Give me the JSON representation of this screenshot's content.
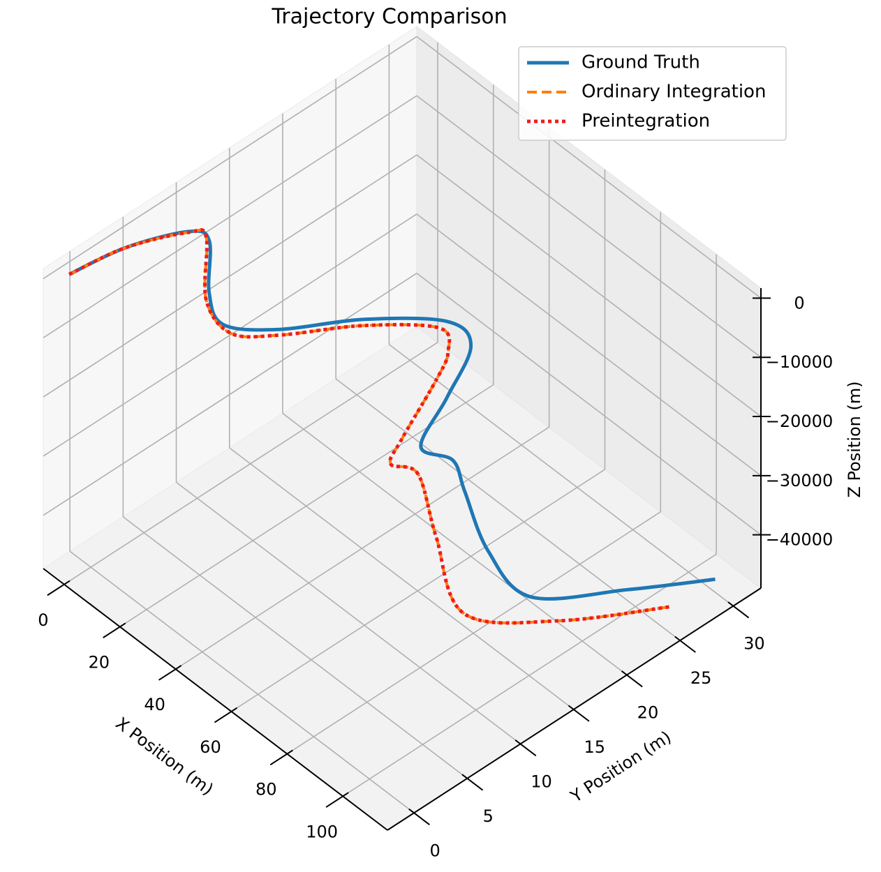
{
  "chart_data": {
    "type": "line3d",
    "title": "Trajectory Comparison",
    "xlabel": "X Position (m)",
    "ylabel": "Y Position (m)",
    "zlabel": "Z Position (m)",
    "xlim": [
      -7.5,
      116
    ],
    "ylim": [
      -2.5,
      32.6
    ],
    "zlim": [
      -49000,
      1700
    ],
    "xticks": [
      0,
      20,
      40,
      60,
      80,
      100
    ],
    "yticks": [
      0,
      5,
      10,
      15,
      20,
      25,
      30
    ],
    "zticks": [
      {
        "value": -40000,
        "label": "−40000"
      },
      {
        "value": -30000,
        "label": "−30000"
      },
      {
        "value": -20000,
        "label": "−20000"
      },
      {
        "value": -10000,
        "label": "−10000"
      },
      0
    ],
    "grid": true,
    "legend": "upper right",
    "series": [
      {
        "name": "Ground Truth",
        "color": "#1f77b4",
        "style": "solid",
        "x": [
          -4.3,
          -5.6,
          -3.0,
          -1.0,
          8.5,
          15.1,
          21.8,
          29.3,
          39.8,
          46.3,
          51.8,
          56.2,
          61.2,
          67.4,
          82.7,
          97.6,
          108.0,
          116.0
        ],
        "y": [
          -0.9,
          4.7,
          10.0,
          11.4,
          8.9,
          8.5,
          12.0,
          17.9,
          23.0,
          23.6,
          19.9,
          16.3,
          18.0,
          17.5,
          15.7,
          15.8,
          22.2,
          28.3
        ],
        "z": [
          0,
          -2500,
          -5000,
          -7500,
          -10000,
          -12500,
          -15000,
          -17500,
          -20000,
          -22500,
          -25000,
          -27500,
          -30000,
          -32500,
          -35000,
          -37500,
          -40000,
          -42500
        ]
      },
      {
        "name": "Ordinary Integration",
        "color": "#ff7f0e",
        "style": "dashed",
        "x": [
          -4.3,
          -5.6,
          -2.9,
          -2.5,
          9.7,
          18.5,
          23.2,
          30.9,
          40.4,
          44.2,
          45.6,
          51.2,
          51.9,
          55.2,
          70.5,
          90.9,
          104.5,
          115.6
        ],
        "y": [
          -0.9,
          4.7,
          9.9,
          11.5,
          8.3,
          8.3,
          11.6,
          17.5,
          22.2,
          22.0,
          20.5,
          15.8,
          14.6,
          16.3,
          14.0,
          11.3,
          16.6,
          24.2
        ],
        "z": [
          0,
          -2500,
          -5000,
          -7500,
          -10000,
          -12500,
          -15000,
          -17500,
          -20000,
          -22500,
          -25000,
          -27500,
          -30000,
          -32500,
          -35000,
          -37500,
          -40000,
          -42500
        ]
      },
      {
        "name": "Preintegration",
        "color": "#ee1c1c",
        "style": "dotted",
        "x": [
          -4.3,
          -5.6,
          -2.9,
          -2.5,
          9.7,
          18.5,
          23.2,
          30.9,
          40.4,
          44.2,
          45.6,
          51.2,
          51.9,
          55.2,
          70.5,
          90.9,
          104.5,
          115.6
        ],
        "y": [
          -0.9,
          4.7,
          9.9,
          11.5,
          8.3,
          8.3,
          11.6,
          17.5,
          22.2,
          22.0,
          20.5,
          15.8,
          14.6,
          16.3,
          14.0,
          11.3,
          16.6,
          24.2
        ],
        "z": [
          0,
          -2500,
          -5000,
          -7500,
          -10000,
          -12500,
          -15000,
          -17500,
          -20000,
          -22500,
          -25000,
          -27500,
          -30000,
          -32500,
          -35000,
          -37500,
          -40000,
          -42500
        ]
      }
    ]
  }
}
